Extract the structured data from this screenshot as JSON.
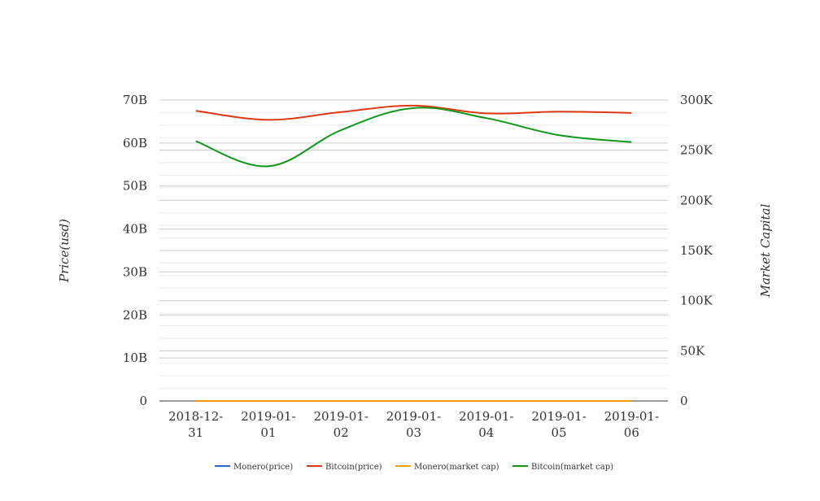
{
  "chart_data": {
    "type": "line",
    "categories": [
      "2018-12-31",
      "2019-01-01",
      "2019-01-02",
      "2019-01-03",
      "2019-01-04",
      "2019-01-05",
      "2019-01-06"
    ],
    "x_tick_labels": [
      [
        "2018-12-",
        "31"
      ],
      [
        "2019-01-",
        "01"
      ],
      [
        "2019-01-",
        "02"
      ],
      [
        "2019-01-",
        "03"
      ],
      [
        "2019-01-",
        "04"
      ],
      [
        "2019-01-",
        "05"
      ],
      [
        "2019-01-",
        "06"
      ]
    ],
    "y_left": {
      "label": "Price(usd)",
      "min": 0,
      "max": 70000000000,
      "ticks": [
        0,
        10000000000,
        20000000000,
        30000000000,
        40000000000,
        50000000000,
        60000000000,
        70000000000
      ],
      "tick_labels": [
        "0",
        "10B",
        "20B",
        "30B",
        "40B",
        "50B",
        "60B",
        "70B"
      ]
    },
    "y_right": {
      "label": "Market Capital",
      "min": 0,
      "max": 300000,
      "ticks": [
        0,
        50000,
        100000,
        150000,
        200000,
        250000,
        300000
      ],
      "tick_labels": [
        "0",
        "50K",
        "100K",
        "150K",
        "200K",
        "250K",
        "300K"
      ]
    },
    "series": [
      {
        "name": "Monero(price)",
        "axis": "left",
        "color": "#3366cc",
        "values": [
          0,
          0,
          0,
          0,
          0,
          0,
          0
        ]
      },
      {
        "name": "Bitcoin(price)",
        "axis": "left",
        "color": "#dc3912",
        "values": [
          67500000000,
          65400000000,
          67200000000,
          68700000000,
          66900000000,
          67300000000,
          67000000000
        ]
      },
      {
        "name": "Monero(market cap)",
        "axis": "right",
        "color": "#ff9900",
        "values": [
          0,
          0,
          0,
          0,
          0,
          0,
          0
        ]
      },
      {
        "name": "Bitcoin(market cap)",
        "axis": "right",
        "color": "#109618",
        "values": [
          259000,
          234000,
          270000,
          292000,
          282000,
          265000,
          258000
        ]
      }
    ],
    "grid": true,
    "legend_position": "bottom"
  }
}
